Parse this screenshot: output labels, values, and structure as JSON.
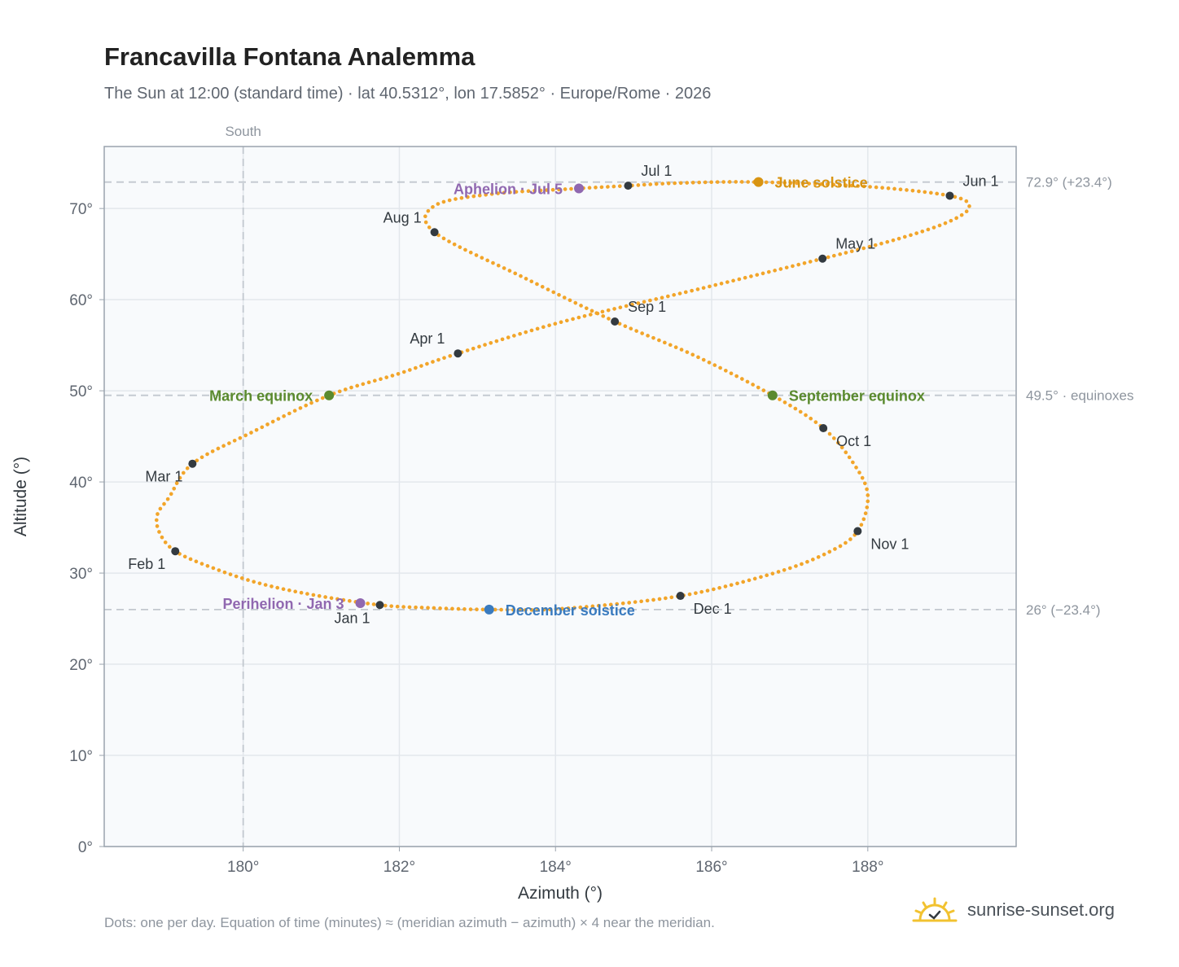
{
  "title": "Francavilla Fontana Analemma",
  "subtitle": "The Sun at 12:00 (standard time) · lat 40.5312°, lon 17.5852° · Europe/Rome · 2026",
  "footer": "Dots: one per day. Equation of time (minutes) ≈ (meridian azimuth − azimuth) × 4 near the meridian.",
  "brand": {
    "text": "sunrise-sunset.org",
    "icon": "sun-logo-icon"
  },
  "colors": {
    "curve": "#f2a52a",
    "month_marker": "#333a40",
    "equinox": "#5a8a2e",
    "june_solstice": "#d89412",
    "december_solstice": "#3a7bbf",
    "apsis": "#9068b0",
    "plot_bg": "#f8fafc",
    "grid": "#e3e7ec",
    "axis_frame": "#9aa3ad",
    "reference_line": "#c2c8cf"
  },
  "chart_data": {
    "type": "scatter",
    "title": "Francavilla Fontana Analemma",
    "xlabel": "Azimuth (°)",
    "ylabel": "Altitude (°)",
    "xlim": [
      178.22,
      189.9
    ],
    "ylim": [
      0,
      76.8
    ],
    "x_ticks": [
      {
        "value": 180,
        "label": "180°"
      },
      {
        "value": 182,
        "label": "182°"
      },
      {
        "value": 184,
        "label": "184°"
      },
      {
        "value": 186,
        "label": "186°"
      },
      {
        "value": 188,
        "label": "188°"
      }
    ],
    "y_ticks": [
      {
        "value": 0,
        "label": "0°"
      },
      {
        "value": 10,
        "label": "10°"
      },
      {
        "value": 20,
        "label": "20°"
      },
      {
        "value": 30,
        "label": "30°"
      },
      {
        "value": 40,
        "label": "40°"
      },
      {
        "value": 50,
        "label": "50°"
      },
      {
        "value": 60,
        "label": "60°"
      },
      {
        "value": 70,
        "label": "70°"
      }
    ],
    "grid": true,
    "south_line": {
      "x": 180,
      "label": "South"
    },
    "reference_lines": [
      {
        "y": 72.9,
        "label": "72.9° (+23.4°)"
      },
      {
        "y": 49.5,
        "label": "49.5° · equinoxes"
      },
      {
        "y": 26,
        "label": "26° (−23.4°)"
      }
    ],
    "series": [
      {
        "type": "line",
        "note": "daily sun positions, one dot per day",
        "points": [
          [
            181.75,
            26.5
          ],
          [
            180.9,
            27.6
          ],
          [
            180.2,
            28.9
          ],
          [
            179.6,
            30.6
          ],
          [
            179.13,
            32.4
          ],
          [
            178.93,
            34.4
          ],
          [
            178.9,
            36.4
          ],
          [
            179.05,
            38.3
          ],
          [
            179.35,
            42.0
          ],
          [
            180.1,
            45.4
          ],
          [
            181.1,
            49.5
          ],
          [
            182.0,
            51.9
          ],
          [
            182.75,
            54.1
          ],
          [
            184.1,
            57.6
          ],
          [
            185.9,
            61.3
          ],
          [
            187.42,
            64.5
          ],
          [
            188.4,
            66.7
          ],
          [
            189.05,
            68.6
          ],
          [
            189.3,
            70.2
          ],
          [
            189.05,
            71.4
          ],
          [
            188.0,
            72.4
          ],
          [
            186.6,
            72.9
          ],
          [
            185.6,
            72.8
          ],
          [
            184.93,
            72.5
          ],
          [
            184.3,
            72.2
          ],
          [
            183.2,
            71.6
          ],
          [
            182.45,
            70.3
          ],
          [
            182.45,
            67.4
          ],
          [
            183.6,
            62.4
          ],
          [
            184.76,
            57.6
          ],
          [
            185.8,
            53.8
          ],
          [
            186.78,
            49.5
          ],
          [
            187.43,
            45.9
          ],
          [
            187.82,
            42.0
          ],
          [
            188.0,
            38.5
          ],
          [
            187.87,
            34.6
          ],
          [
            187.5,
            32.3
          ],
          [
            186.8,
            30.0
          ],
          [
            185.6,
            27.5
          ],
          [
            184.1,
            26.1
          ],
          [
            183.15,
            26.0
          ],
          [
            182.35,
            26.2
          ],
          [
            181.75,
            26.5
          ]
        ]
      }
    ],
    "month_markers": [
      {
        "label": "Jan 1",
        "x": 181.75,
        "y": 26.5,
        "label_pos": "below-left"
      },
      {
        "label": "Feb 1",
        "x": 179.13,
        "y": 32.4,
        "label_pos": "below-left"
      },
      {
        "label": "Mar 1",
        "x": 179.35,
        "y": 42.0,
        "label_pos": "below-left"
      },
      {
        "label": "Apr 1",
        "x": 182.75,
        "y": 54.1,
        "label_pos": "above-left"
      },
      {
        "label": "May 1",
        "x": 187.42,
        "y": 64.5,
        "label_pos": "above-right"
      },
      {
        "label": "Jun 1",
        "x": 189.05,
        "y": 71.4,
        "label_pos": "above-right"
      },
      {
        "label": "Jul 1",
        "x": 184.93,
        "y": 72.5,
        "label_pos": "above-right"
      },
      {
        "label": "Aug 1",
        "x": 182.45,
        "y": 67.4,
        "label_pos": "above-left"
      },
      {
        "label": "Sep 1",
        "x": 184.76,
        "y": 57.6,
        "label_pos": "above-right"
      },
      {
        "label": "Oct 1",
        "x": 187.43,
        "y": 45.9,
        "label_pos": "below-right"
      },
      {
        "label": "Nov 1",
        "x": 187.87,
        "y": 34.6,
        "label_pos": "below-right"
      },
      {
        "label": "Dec 1",
        "x": 185.6,
        "y": 27.5,
        "label_pos": "below-right"
      }
    ],
    "events": [
      {
        "label": "March equinox",
        "x": 181.1,
        "y": 49.5,
        "color_key": "equinox",
        "label_pos": "left"
      },
      {
        "label": "September equinox",
        "x": 186.78,
        "y": 49.5,
        "color_key": "equinox",
        "label_pos": "right"
      },
      {
        "label": "June solstice",
        "x": 186.6,
        "y": 72.9,
        "color_key": "june_solstice",
        "label_pos": "right"
      },
      {
        "label": "December solstice",
        "x": 183.15,
        "y": 26.0,
        "color_key": "december_solstice",
        "label_pos": "right"
      },
      {
        "label": "Aphelion · Jul 5",
        "x": 184.3,
        "y": 72.2,
        "color_key": "apsis",
        "label_pos": "left"
      },
      {
        "label": "Perihelion · Jan 3",
        "x": 181.5,
        "y": 26.7,
        "color_key": "apsis",
        "label_pos": "left"
      }
    ]
  }
}
